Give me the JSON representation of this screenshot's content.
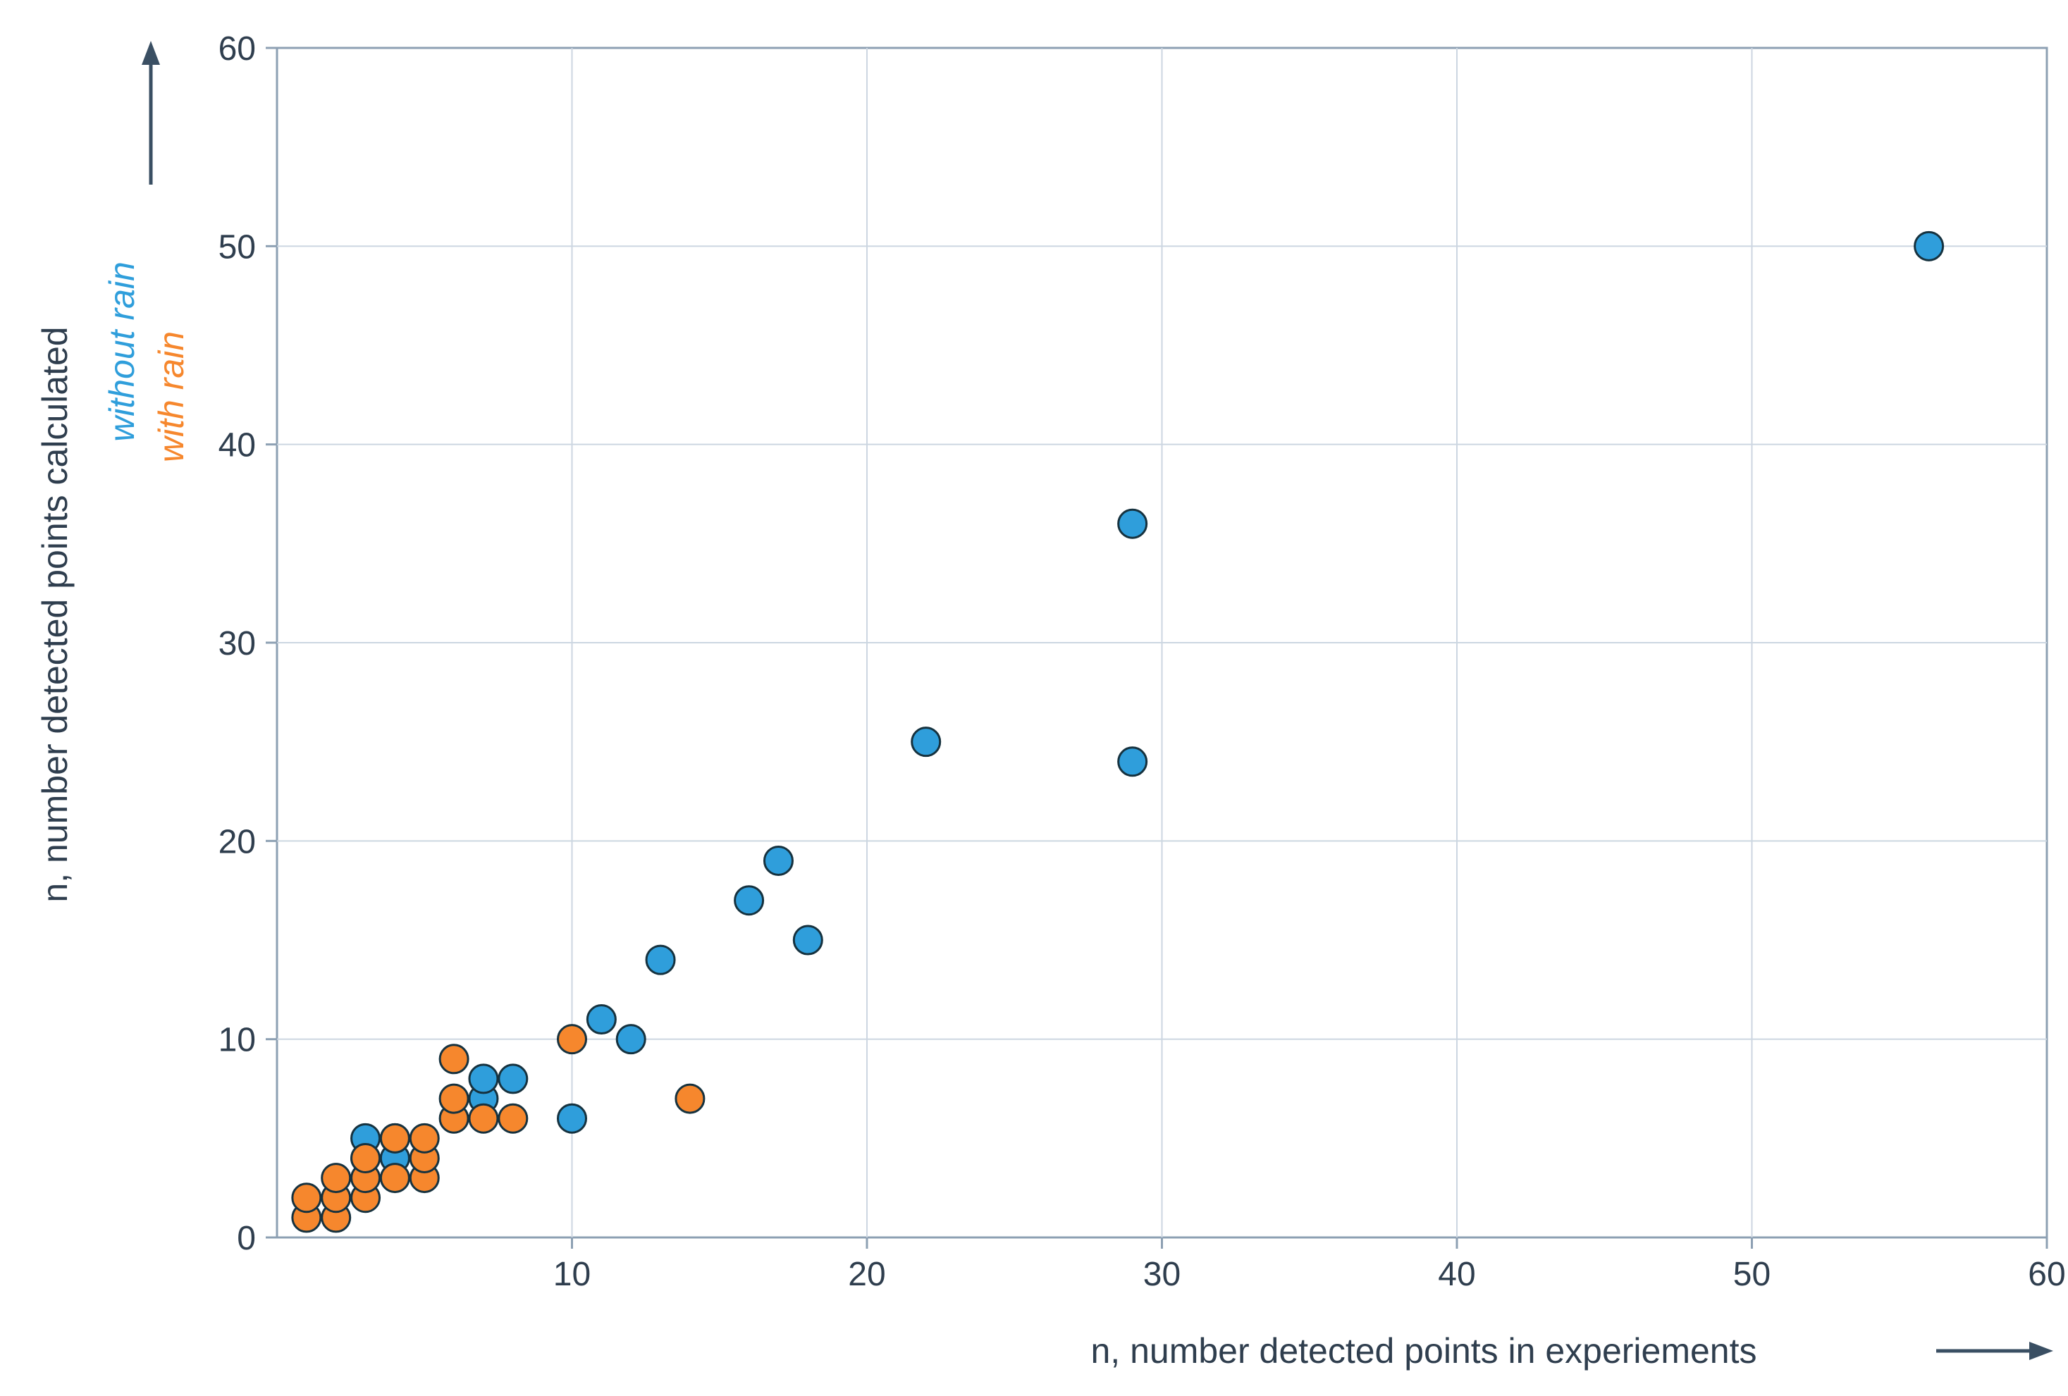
{
  "chart_data": {
    "type": "scatter",
    "title": "",
    "xlabel": "n, number detected points in experiements",
    "ylabel": "n, number detected points calculated",
    "xlim": [
      0,
      60
    ],
    "ylim": [
      0,
      60
    ],
    "xticks": [
      10,
      20,
      30,
      40,
      50,
      60
    ],
    "yticks": [
      0,
      10,
      20,
      30,
      40,
      50,
      60
    ],
    "grid": true,
    "legend_position": "y-axis-inline",
    "colors": {
      "axis_text": "#2f3e4e",
      "grid": "#ccd6e1",
      "border": "#8da0b3",
      "marker_outline": "#16323f",
      "arrow": "#3a4f63"
    },
    "series": [
      {
        "name": "without rain",
        "color": "#2f9edb",
        "points": [
          [
            3,
            4
          ],
          [
            3,
            5
          ],
          [
            4,
            4
          ],
          [
            4,
            5
          ],
          [
            7,
            7
          ],
          [
            7,
            8
          ],
          [
            8,
            8
          ],
          [
            10,
            6
          ],
          [
            11,
            11
          ],
          [
            12,
            10
          ],
          [
            13,
            14
          ],
          [
            16,
            17
          ],
          [
            17,
            19
          ],
          [
            18,
            15
          ],
          [
            22,
            25
          ],
          [
            29,
            24
          ],
          [
            29,
            36
          ],
          [
            56,
            50
          ]
        ]
      },
      {
        "name": "with rain",
        "color": "#f6872d",
        "points": [
          [
            1,
            1
          ],
          [
            1,
            2
          ],
          [
            2,
            1
          ],
          [
            2,
            2
          ],
          [
            2,
            3
          ],
          [
            3,
            2
          ],
          [
            3,
            3
          ],
          [
            3,
            4
          ],
          [
            4,
            3
          ],
          [
            4,
            5
          ],
          [
            5,
            3
          ],
          [
            5,
            4
          ],
          [
            5,
            5
          ],
          [
            6,
            6
          ],
          [
            6,
            7
          ],
          [
            6,
            9
          ],
          [
            7,
            6
          ],
          [
            8,
            6
          ],
          [
            10,
            10
          ],
          [
            14,
            7
          ]
        ]
      }
    ]
  },
  "labels": {
    "y_axis_title": "n, number detected points calculated",
    "series_without_rain": "without rain",
    "series_with_rain": "with rain",
    "x_axis_title": "n, number detected points in experiements"
  }
}
